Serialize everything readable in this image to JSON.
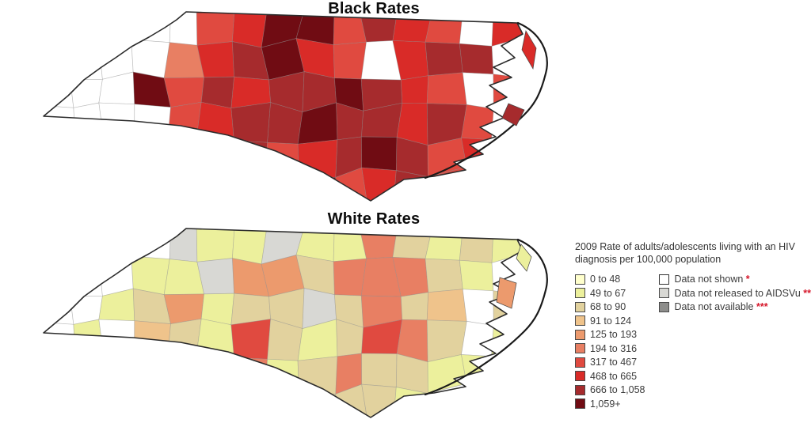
{
  "page": {
    "background": "#FFFFFF"
  },
  "maps": [
    {
      "id": "black",
      "title": "Black Rates"
    },
    {
      "id": "white",
      "title": "White Rates"
    }
  ],
  "palette": {
    "0": "#FFFFCC",
    "1": "#ECF09C",
    "2": "#E2D29E",
    "3": "#EFC38B",
    "4": "#EC9A6D",
    "5": "#E87F63",
    "6": "#E04A40",
    "7": "#D92B28",
    "8": "#A62B2D",
    "9": "#700C13",
    "W": "#FFFFFF",
    "LG": "#D8D8D4",
    "DG": "#8D8D8B"
  },
  "legend": {
    "title": "2009 Rate of adults/adolescents living with an HIV diagnosis per 100,000 population",
    "marker_color": "#D6182B",
    "classes": [
      {
        "key": "0",
        "label": "0 to 48"
      },
      {
        "key": "1",
        "label": "49 to 67"
      },
      {
        "key": "2",
        "label": "68 to 90"
      },
      {
        "key": "3",
        "label": "91 to 124"
      },
      {
        "key": "4",
        "label": "125 to 193"
      },
      {
        "key": "5",
        "label": "194 to 316"
      },
      {
        "key": "6",
        "label": "317 to 467"
      },
      {
        "key": "7",
        "label": "468 to 665"
      },
      {
        "key": "8",
        "label": "666 to 1,058"
      },
      {
        "key": "9",
        "label": "1,059+"
      }
    ],
    "special": [
      {
        "key": "W",
        "label": "Data not shown",
        "marker": "*",
        "stipple": false
      },
      {
        "key": "LG",
        "label": "Data not released to AIDSVu",
        "marker": "**",
        "stipple": true
      },
      {
        "key": "DG",
        "label": "Data not available",
        "marker": "***",
        "stipple": false
      }
    ]
  },
  "chart_data": {
    "type": "heatmap",
    "subtype": "choropleth-county-map",
    "geography": "North Carolina counties",
    "legend_title": "2009 Rate of adults/adolescents living with an HIV diagnosis per 100,000 population",
    "legend_position": "right",
    "classes": [
      {
        "label": "0 to 48",
        "color": "#FFFFCC"
      },
      {
        "label": "49 to 67",
        "color": "#ECF09C"
      },
      {
        "label": "68 to 90",
        "color": "#E2D29E"
      },
      {
        "label": "91 to 124",
        "color": "#EFC38B"
      },
      {
        "label": "125 to 193",
        "color": "#EC9A6D"
      },
      {
        "label": "194 to 316",
        "color": "#E87F63"
      },
      {
        "label": "317 to 467",
        "color": "#E04A40"
      },
      {
        "label": "468 to 665",
        "color": "#D92B28"
      },
      {
        "label": "666 to 1,058",
        "color": "#A62B2D"
      },
      {
        "label": "1,059+",
        "color": "#700C13"
      }
    ],
    "special_classes": [
      {
        "label": "Data not shown",
        "marker": "*",
        "color": "#FFFFFF"
      },
      {
        "label": "Data not released to AIDSVu",
        "marker": "**",
        "color": "#D8D8D4"
      },
      {
        "label": "Data not available",
        "marker": "***",
        "color": "#8D8D8B"
      }
    ],
    "series": [
      {
        "name": "Black Rates",
        "summary": "Nearly all counties fall in the four highest classes (317 to 467 through 1,059+); far-western mountain counties are mostly 'Data not shown' (white), with one 1,059+ county (Buncombe area) and dark 666+ bands across the north-central and southeastern counties.",
        "grid_16x6_class_keys": [
          [
            "W",
            "W",
            "W",
            "W",
            "W",
            "6",
            "7",
            "9",
            "9",
            "6",
            "8",
            "7",
            "6",
            "W",
            "7",
            "8"
          ],
          [
            "W",
            "W",
            "W",
            "W",
            "5",
            "7",
            "8",
            "9",
            "7",
            "6",
            "W",
            "7",
            "8",
            "8",
            "W",
            "7"
          ],
          [
            "W",
            "W",
            "W",
            "9",
            "6",
            "8",
            "7",
            "8",
            "8",
            "9",
            "8",
            "7",
            "6",
            "W",
            "6",
            "7"
          ],
          [
            "W",
            "W",
            "W",
            "W",
            "6",
            "7",
            "8",
            "8",
            "9",
            "8",
            "8",
            "7",
            "8",
            "6",
            "W",
            "6"
          ],
          [
            "W",
            "W",
            "W",
            "W",
            "6",
            "7",
            "8",
            "6",
            "7",
            "8",
            "9",
            "8",
            "6",
            "7",
            "W",
            "W"
          ],
          [
            "W",
            "W",
            "W",
            "W",
            "W",
            "W",
            "8",
            "7",
            "9",
            "6",
            "7",
            "8",
            "6",
            "W",
            "W",
            "W"
          ]
        ]
      },
      {
        "name": "White Rates",
        "summary": "Most counties fall in the lowest classes (0 to 48 through 125 to 193, pale yellow to tan); scattered 194 to 316 and a few 317 to 467 counties, several gray 'Data not released to AIDSVu' counties in the northwest/north, and white 'Data not shown' counties in the far west and coast.",
        "grid_16x6_class_keys": [
          [
            "W",
            "W",
            "W",
            "W",
            "LG",
            "1",
            "1",
            "LG",
            "1",
            "1",
            "5",
            "2",
            "1",
            "2",
            "1",
            "1"
          ],
          [
            "W",
            "W",
            "W",
            "1",
            "1",
            "LG",
            "4",
            "4",
            "2",
            "5",
            "5",
            "5",
            "2",
            "1",
            "W",
            "2"
          ],
          [
            "W",
            "W",
            "1",
            "2",
            "4",
            "1",
            "2",
            "2",
            "LG",
            "2",
            "5",
            "2",
            "3",
            "W",
            "2",
            "1"
          ],
          [
            "W",
            "1",
            "W",
            "3",
            "2",
            "1",
            "6",
            "2",
            "1",
            "2",
            "6",
            "5",
            "2",
            "W",
            "1",
            "W"
          ],
          [
            "W",
            "W",
            "W",
            "W",
            "1",
            "2",
            "5",
            "1",
            "2",
            "5",
            "2",
            "2",
            "1",
            "1",
            "W",
            "W"
          ],
          [
            "W",
            "W",
            "W",
            "W",
            "W",
            "W",
            "2",
            "5",
            "2",
            "2",
            "2",
            "1",
            "W",
            "W",
            "W",
            "W"
          ]
        ]
      }
    ]
  }
}
